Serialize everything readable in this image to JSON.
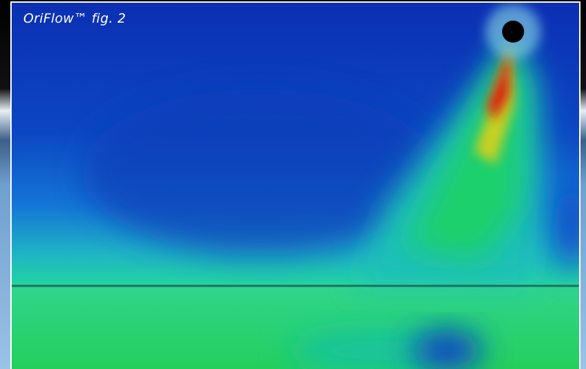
{
  "caption": "OriFlow™ fig. 2"
}
